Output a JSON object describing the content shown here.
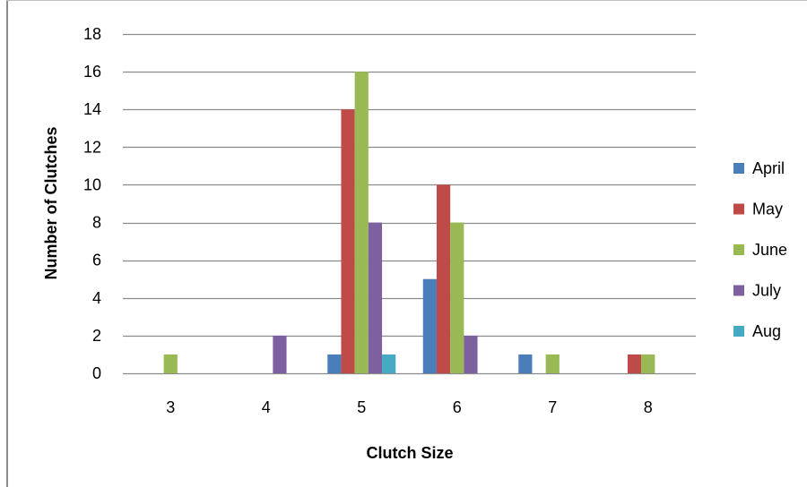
{
  "chart_data": {
    "type": "bar",
    "categories": [
      "3",
      "4",
      "5",
      "6",
      "7",
      "8"
    ],
    "series": [
      {
        "name": "April",
        "color": "#4a7ebb",
        "values": [
          0,
          0,
          1,
          5,
          1,
          0
        ]
      },
      {
        "name": "May",
        "color": "#be4b48",
        "values": [
          0,
          0,
          14,
          10,
          0,
          1
        ]
      },
      {
        "name": "June",
        "color": "#98b954",
        "values": [
          1,
          0,
          16,
          8,
          1,
          1
        ]
      },
      {
        "name": "July",
        "color": "#7d60a0",
        "values": [
          0,
          2,
          8,
          2,
          0,
          0
        ]
      },
      {
        "name": "Aug",
        "color": "#46aac5",
        "values": [
          0,
          0,
          1,
          0,
          0,
          0
        ]
      }
    ],
    "xlabel": "Clutch Size",
    "ylabel": "Number of Clutches",
    "ylim": [
      0,
      18
    ],
    "yticks": [
      0,
      2,
      4,
      6,
      8,
      10,
      12,
      14,
      16,
      18
    ],
    "grid": true,
    "legend": "right"
  }
}
